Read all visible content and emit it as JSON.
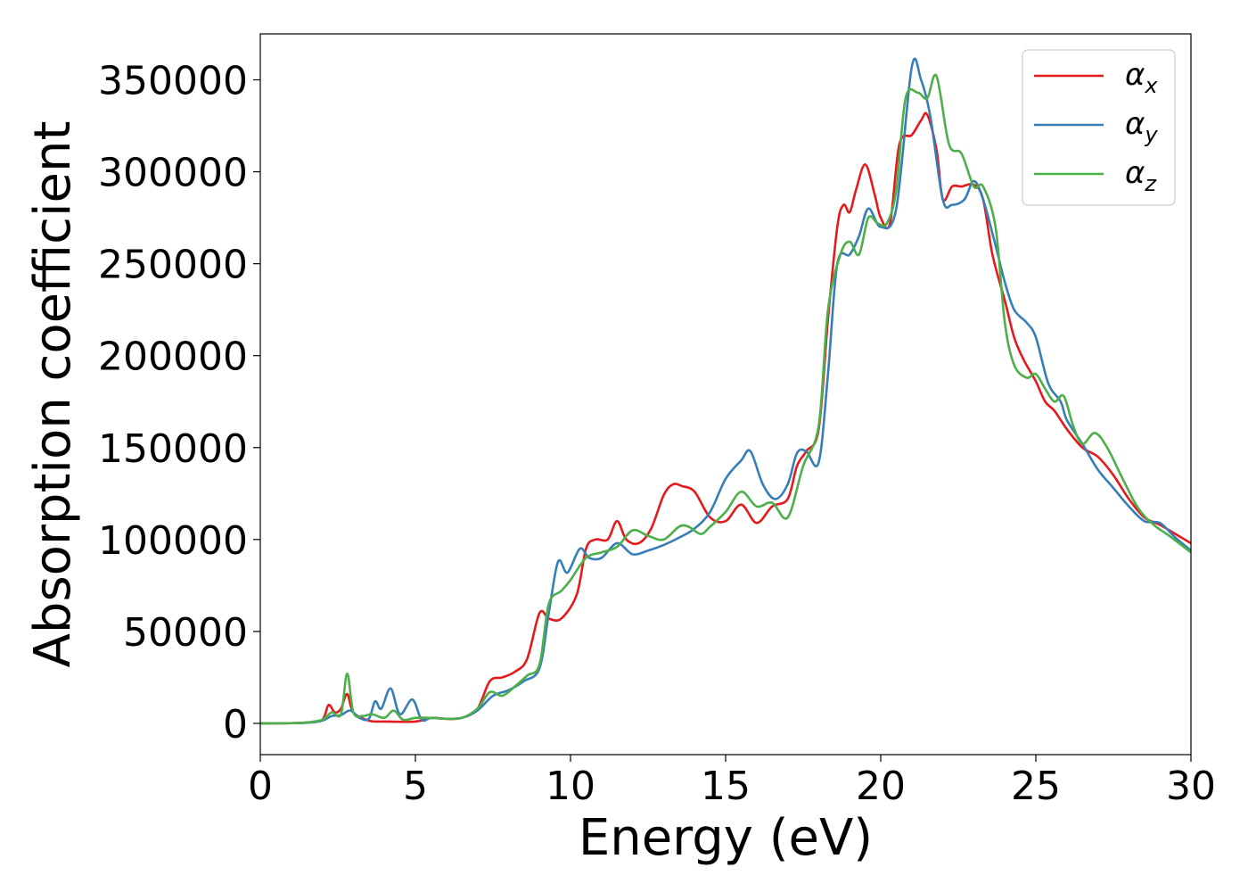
{
  "chart_data": {
    "type": "line",
    "xlabel": "Energy (eV)",
    "ylabel": "Absorption coefficient",
    "xlim": [
      0,
      30
    ],
    "ylim": [
      -17000,
      375000
    ],
    "xticks": [
      0,
      5,
      10,
      15,
      20,
      25,
      30
    ],
    "xtick_labels": [
      "0",
      "5",
      "10",
      "15",
      "20",
      "25",
      "30"
    ],
    "yticks": [
      0,
      50000,
      100000,
      150000,
      200000,
      250000,
      300000,
      350000
    ],
    "ytick_labels": [
      "0",
      "50000",
      "100000",
      "150000",
      "200000",
      "250000",
      "300000",
      "350000"
    ],
    "legend_position": "top-right",
    "grid": false,
    "series": [
      {
        "name": "α_x",
        "symbol": "α",
        "subscript": "x",
        "color": "#e41a1c",
        "x": [
          0,
          1,
          1.5,
          2,
          2.2,
          2.4,
          2.6,
          2.8,
          3,
          3.5,
          4,
          5,
          5.5,
          6,
          6.5,
          7,
          7.4,
          7.8,
          8.2,
          8.6,
          9,
          9.3,
          9.7,
          10.2,
          10.5,
          10.8,
          11.2,
          11.5,
          11.8,
          12.2,
          12.6,
          13,
          13.3,
          13.6,
          14,
          14.5,
          15,
          15.5,
          16,
          16.5,
          17,
          17.3,
          17.6,
          18,
          18.3,
          18.6,
          18.8,
          19,
          19.2,
          19.5,
          19.8,
          20,
          20.3,
          20.6,
          21,
          21.3,
          21.5,
          21.8,
          22,
          22.3,
          22.6,
          23,
          23.3,
          23.6,
          24,
          24.3,
          24.6,
          25,
          25.3,
          25.6,
          26,
          26.5,
          27,
          27.5,
          28,
          28.5,
          29,
          29.5,
          30
        ],
        "y": [
          0,
          100,
          500,
          2000,
          10000,
          6000,
          8000,
          16000,
          6000,
          1500,
          1000,
          1000,
          3000,
          2500,
          3000,
          8000,
          23000,
          25000,
          28000,
          35000,
          60000,
          57000,
          57000,
          70000,
          95000,
          100000,
          100000,
          110000,
          100000,
          98000,
          106000,
          124000,
          130000,
          129000,
          126000,
          112000,
          110000,
          119000,
          109000,
          118000,
          122000,
          140000,
          148000,
          160000,
          220000,
          270000,
          282000,
          278000,
          290000,
          304000,
          288000,
          275000,
          272000,
          315000,
          320000,
          328000,
          331000,
          312000,
          285000,
          292000,
          292000,
          293000,
          285000,
          255000,
          230000,
          210000,
          198000,
          186000,
          175000,
          170000,
          160000,
          150000,
          145000,
          135000,
          122000,
          112000,
          108000,
          103000,
          98000
        ]
      },
      {
        "name": "α_y",
        "symbol": "α",
        "subscript": "y",
        "color": "#377eb8",
        "x": [
          0,
          1,
          1.5,
          2,
          2.3,
          2.6,
          2.9,
          3.2,
          3.5,
          3.7,
          3.9,
          4.2,
          4.5,
          4.9,
          5.2,
          5.5,
          6,
          6.5,
          7,
          7.5,
          8,
          8.5,
          9,
          9.3,
          9.6,
          9.9,
          10.3,
          10.6,
          11,
          11.5,
          12,
          12.5,
          13,
          13.5,
          14,
          14.5,
          15,
          15.5,
          15.8,
          16.2,
          16.6,
          17,
          17.3,
          17.6,
          18,
          18.3,
          18.6,
          19,
          19.3,
          19.6,
          20,
          20.5,
          21,
          21.3,
          21.6,
          22,
          22.3,
          22.7,
          23,
          23.3,
          23.7,
          24,
          24.3,
          24.7,
          25,
          25.4,
          25.8,
          26,
          26.5,
          27,
          27.5,
          28,
          28.5,
          29,
          29.5,
          30
        ],
        "y": [
          0,
          100,
          300,
          1500,
          4000,
          4500,
          7000,
          3000,
          2500,
          12000,
          8000,
          19000,
          5000,
          13000,
          2000,
          3000,
          2500,
          3000,
          7000,
          15000,
          18000,
          23000,
          30000,
          60000,
          88000,
          82000,
          95000,
          90000,
          90000,
          98000,
          92000,
          94000,
          97000,
          101000,
          106000,
          115000,
          133000,
          143000,
          148000,
          130000,
          122000,
          130000,
          147000,
          148000,
          142000,
          190000,
          250000,
          255000,
          265000,
          280000,
          270000,
          280000,
          357000,
          350000,
          330000,
          285000,
          282000,
          285000,
          295000,
          285000,
          260000,
          240000,
          225000,
          218000,
          210000,
          185000,
          175000,
          165000,
          152000,
          138000,
          128000,
          118000,
          110000,
          109000,
          101000,
          94000
        ]
      },
      {
        "name": "α_z",
        "symbol": "α",
        "subscript": "z",
        "color": "#4daf4a",
        "x": [
          0,
          1,
          1.5,
          2,
          2.3,
          2.6,
          2.8,
          3,
          3.3,
          3.6,
          4,
          4.3,
          4.6,
          5,
          5.5,
          6,
          6.5,
          7,
          7.4,
          7.8,
          8.2,
          8.6,
          9,
          9.3,
          9.7,
          10,
          10.5,
          11,
          11.5,
          12,
          12.5,
          13,
          13.5,
          13.8,
          14.2,
          14.5,
          15,
          15.5,
          16,
          16.5,
          17,
          17.5,
          18,
          18.3,
          18.7,
          19,
          19.3,
          19.6,
          19.9,
          20.2,
          20.5,
          20.8,
          21.2,
          21.5,
          21.8,
          22.2,
          22.6,
          23,
          23.3,
          23.7,
          24,
          24.3,
          24.7,
          25,
          25.3,
          25.6,
          25.9,
          26.2,
          26.5,
          26.9,
          27.3,
          27.8,
          28.3,
          28.8,
          29.3,
          30
        ],
        "y": [
          0,
          100,
          500,
          2000,
          6000,
          5000,
          27000,
          6000,
          4000,
          5000,
          3000,
          7000,
          2000,
          3000,
          3000,
          2500,
          3000,
          8000,
          17000,
          15000,
          20000,
          26000,
          32000,
          65000,
          72000,
          78000,
          90000,
          93000,
          96000,
          105000,
          102000,
          100000,
          107000,
          107000,
          103000,
          107000,
          115000,
          126000,
          118000,
          120000,
          112000,
          140000,
          162000,
          225000,
          255000,
          262000,
          255000,
          275000,
          272000,
          272000,
          290000,
          340000,
          343000,
          340000,
          352000,
          315000,
          310000,
          292000,
          292000,
          270000,
          218000,
          195000,
          188000,
          190000,
          182000,
          175000,
          178000,
          162000,
          152000,
          158000,
          150000,
          133000,
          117000,
          108000,
          102000,
          93000
        ]
      }
    ]
  }
}
